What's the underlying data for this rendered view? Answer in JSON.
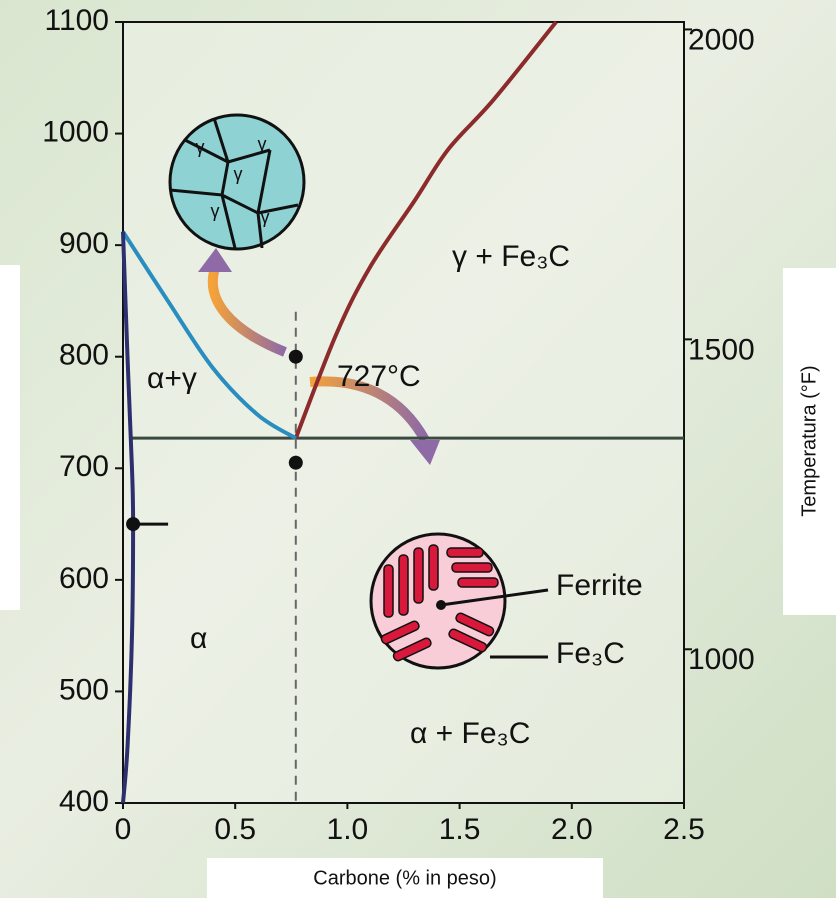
{
  "chart_data": {
    "type": "phase-diagram",
    "xlabel": "Carbone (% in peso)",
    "y2label": "Temperatura (°F)",
    "xlim": [
      0,
      2.5
    ],
    "xticks": [
      0,
      0.5,
      {
        "value": 1,
        "label": "1.0"
      },
      1.5,
      {
        "value": 2,
        "label": "2.0"
      },
      2.5
    ],
    "ylim": [
      400,
      1100
    ],
    "yticks": [
      400,
      500,
      600,
      700,
      800,
      900,
      1000,
      1100
    ],
    "y2lim": [
      752,
      2012
    ],
    "y2ticks": [
      1000,
      1500,
      2000
    ],
    "series": [
      {
        "color": "#8c2b2b",
        "x": [
          0.77,
          0.95,
          1.1,
          1.3,
          1.45,
          1.65,
          1.93
        ],
        "values": [
          727,
          820,
          880,
          940,
          986,
          1030,
          1100
        ]
      },
      {
        "color": "#2a8dbf",
        "x": [
          0,
          0.2,
          0.4,
          0.6,
          0.77
        ],
        "values": [
          912,
          850,
          790,
          748,
          727
        ]
      },
      {
        "color": "#2d2f6e",
        "x": [
          0,
          0.02,
          0.04,
          0.045,
          0.04,
          0.02,
          0
        ],
        "values": [
          912,
          800,
          700,
          650,
          550,
          450,
          400
        ]
      }
    ],
    "eutectoid_temperature": 727,
    "eutectoid_carbon": 0.77,
    "points": {
      "x": [
        0.77,
        0.77,
        0.045
      ],
      "values": [
        800,
        705,
        650
      ]
    },
    "annotations": [
      "α+γ",
      "727°C",
      "α",
      "γ + Fe₃C",
      "α + Fe₃C",
      "Ferrite",
      "Fe₃C"
    ],
    "grain_label": "γ"
  }
}
